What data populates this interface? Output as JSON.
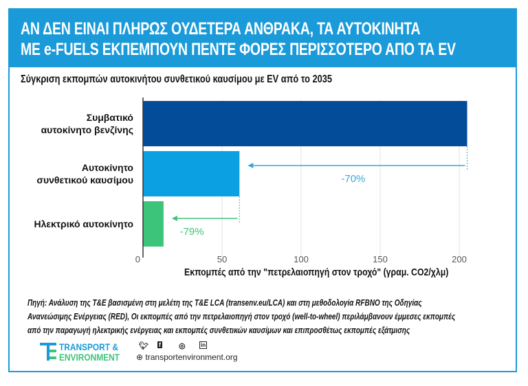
{
  "header": {
    "line1": "ΑΝ ΔΕΝ ΕΙΝΑΙ ΠΛΗΡΩΣ ΟΥΔΕΤΕΡΑ ΑΝΘΡΑΚΑ, ΤΑ ΑΥΤΟΚΙΝΗΤΑ",
    "line2": "ΜΕ e-FUELS ΕΚΠΕΜΠΟΥΝ ΠΕΝΤΕ ΦΟΡΕΣ ΠΕΡΙΣΣΟΤΕΡΟ ΑΠΟ ΤΑ EV"
  },
  "chart_data": {
    "type": "bar",
    "orientation": "horizontal",
    "title": "Σύγκριση εκπομπών αυτοκινήτου συνθετικού καυσίμου με EV από το 2035",
    "categories": [
      [
        "Συμβατικό",
        "αυτοκίνητο βενζίνης"
      ],
      [
        "Αυτοκίνητο",
        "συνθετικού καυσίμου"
      ],
      [
        "Ηλεκτρικό αυτοκίνητο"
      ]
    ],
    "values": [
      205,
      61,
      13
    ],
    "colors": [
      "#034c9a",
      "#0aa0e2",
      "#3cc47a"
    ],
    "xlabel": "Εκπομπές από την \"πετρελαιοπηγή στον τροχό\" (γραμ. CO2/χλμ)",
    "xlim": [
      0,
      210
    ],
    "xticks": [
      "0",
      "50",
      "100",
      "150",
      "200"
    ],
    "annotations": [
      {
        "text": "-70%",
        "from": 205,
        "to": 61,
        "color": "#3aa6d8"
      },
      {
        "text": "-79%",
        "from": 61,
        "to": 13,
        "color": "#3cc47a"
      }
    ],
    "grid": true
  },
  "source": {
    "line1": "Πηγή: Ανάλυση της T&E βασισμένη στη μελέτη της T&E LCA (transenv.eu/LCA) και στη μεθοδολογία RFBNO της Οδηγίας",
    "line2": "Ανανεώσιμης Ενέργειας (RED), Οι εκπομπές από την πετρελαιοπηγή στον τροχό (well-to-wheel) περιλάμβανουν έμμεσες εκπομπές",
    "line3": "από την παραγωγή ηλεκτρικής ενέργειας και εκπομπές συνθετικών καυσίμων και επιπροσθέτως εκπομπές εξάτμισης"
  },
  "footer": {
    "logo_line1": "TRANSPORT &",
    "logo_line2": "ENVIRONMENT",
    "url": "transportenvironment.org",
    "icons": [
      "twitter-icon",
      "facebook-icon",
      "instagram-icon",
      "linkedin-icon"
    ]
  }
}
